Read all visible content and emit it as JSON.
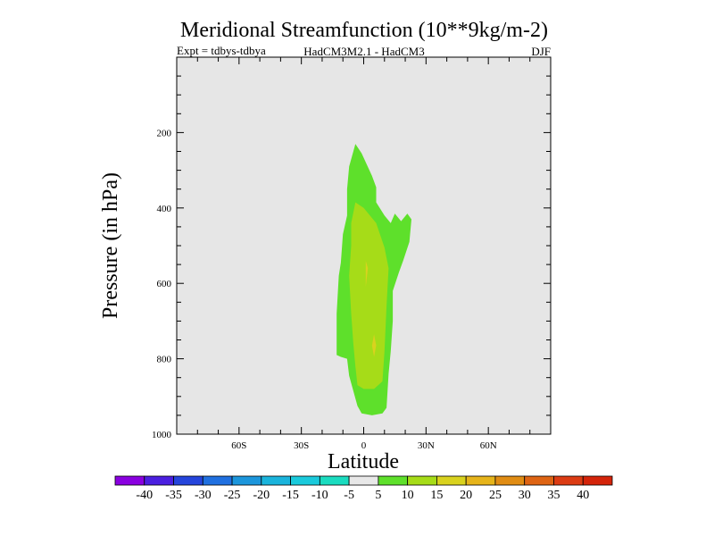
{
  "chart_data": {
    "type": "contour",
    "title": "Meridional Streamfunction (10**9kg/m-2)",
    "subtitle_left": "Expt = tdbys-tdbya",
    "subtitle_center": "HadCM3M2.1 - HadCM3",
    "subtitle_right": "DJF",
    "xlabel": "Latitude",
    "ylabel": "Pressure (in hPa)",
    "xlim": [
      -90,
      90
    ],
    "ylim": [
      1000,
      0
    ],
    "x_ticks": [
      {
        "value": -60,
        "label": "60S"
      },
      {
        "value": -30,
        "label": "30S"
      },
      {
        "value": 0,
        "label": "0"
      },
      {
        "value": 30,
        "label": "30N"
      },
      {
        "value": 60,
        "label": "60N"
      }
    ],
    "y_ticks": [
      {
        "value": 200,
        "label": "200"
      },
      {
        "value": 400,
        "label": "400"
      },
      {
        "value": 600,
        "label": "600"
      },
      {
        "value": 800,
        "label": "800"
      },
      {
        "value": 1000,
        "label": "1000"
      }
    ],
    "background_color": "#e6e6e6",
    "filled_regions": [
      {
        "level": "5 to 10",
        "color": "#5ee02b",
        "points": [
          [
            -4,
            230
          ],
          [
            -1,
            255
          ],
          [
            4,
            315
          ],
          [
            6,
            345
          ],
          [
            6,
            385
          ],
          [
            10,
            420
          ],
          [
            13,
            440
          ],
          [
            15,
            415
          ],
          [
            18,
            435
          ],
          [
            21,
            415
          ],
          [
            23,
            430
          ],
          [
            22,
            490
          ],
          [
            19,
            540
          ],
          [
            17,
            570
          ],
          [
            14,
            620
          ],
          [
            14,
            700
          ],
          [
            13,
            780
          ],
          [
            12,
            840
          ],
          [
            11,
            930
          ],
          [
            9,
            945
          ],
          [
            4,
            950
          ],
          [
            -1,
            945
          ],
          [
            -3,
            925
          ],
          [
            -7,
            845
          ],
          [
            -8,
            800
          ],
          [
            -11,
            795
          ],
          [
            -13,
            790
          ],
          [
            -13,
            680
          ],
          [
            -12,
            580
          ],
          [
            -11,
            545
          ],
          [
            -10,
            470
          ],
          [
            -8,
            420
          ],
          [
            -8,
            350
          ],
          [
            -7,
            290
          ],
          [
            -4,
            230
          ]
        ]
      },
      {
        "level": "10 to 15",
        "color": "#a6dc18",
        "points": [
          [
            -4,
            385
          ],
          [
            0,
            400
          ],
          [
            6,
            440
          ],
          [
            10,
            505
          ],
          [
            12,
            560
          ],
          [
            11,
            660
          ],
          [
            10,
            780
          ],
          [
            9,
            860
          ],
          [
            5,
            880
          ],
          [
            0,
            880
          ],
          [
            -3,
            870
          ],
          [
            -4,
            820
          ],
          [
            -5,
            760
          ],
          [
            -6,
            680
          ],
          [
            -7,
            580
          ],
          [
            -6,
            500
          ],
          [
            -6,
            440
          ],
          [
            -4,
            385
          ]
        ]
      },
      {
        "level": "15 to 20",
        "color": "#d9d21e",
        "points": [
          [
            1,
            540
          ],
          [
            2,
            560
          ],
          [
            1,
            610
          ],
          [
            1,
            580
          ],
          [
            1,
            540
          ]
        ]
      },
      {
        "level": "15 to 20",
        "color": "#d9d21e",
        "points": [
          [
            5,
            735
          ],
          [
            6,
            765
          ],
          [
            5,
            795
          ],
          [
            4,
            765
          ],
          [
            5,
            735
          ]
        ]
      }
    ],
    "colorbar": {
      "colors": [
        "#8a00e0",
        "#4b1fe0",
        "#2545dc",
        "#2070e0",
        "#1c96dc",
        "#1ab4dc",
        "#1acadc",
        "#1adcc0",
        "#e8e8e8",
        "#5ee02b",
        "#a6dc18",
        "#d9d21e",
        "#e6b41a",
        "#e08c14",
        "#de6414",
        "#dc3c14",
        "#d4240a"
      ],
      "labels": [
        "-40",
        "-35",
        "-30",
        "-25",
        "-20",
        "-15",
        "-10",
        "-5",
        "5",
        "10",
        "15",
        "20",
        "25",
        "30",
        "35",
        "40"
      ]
    }
  }
}
